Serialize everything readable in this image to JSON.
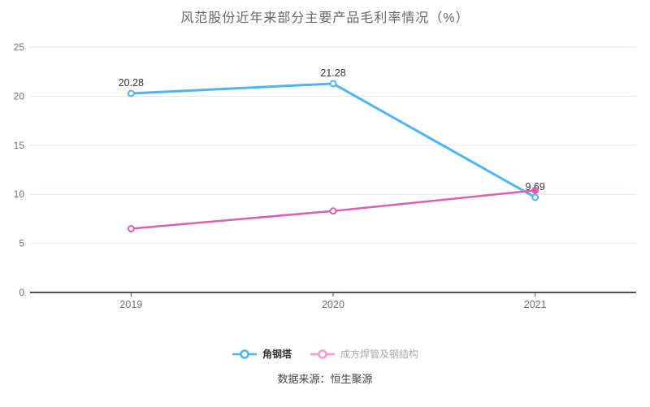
{
  "title": "风范股份近年来部分主要产品毛利率情况（%）",
  "source": "数据来源：恒生聚源",
  "colors": {
    "background": "#ffffff",
    "title_text": "#666666",
    "grid_line": "#e0e6f1",
    "axis_line": "#4d4f57",
    "axis_label": "#6e7079",
    "point_label": "#333333"
  },
  "chart_data": {
    "type": "line",
    "categories": [
      "2019",
      "2020",
      "2021"
    ],
    "series": [
      {
        "name": "角钢塔",
        "color": "#4fb4ef",
        "line_width": 3,
        "values": [
          20.28,
          21.28,
          9.69
        ],
        "point_labels": [
          "20.28",
          "21.28",
          "9.69"
        ],
        "show_labels": true,
        "filled_points": [],
        "legend_color": "#4fb4ef",
        "legend_text_color": "#333333",
        "legend_bold": true
      },
      {
        "name": "成方焊管及钢结构",
        "color": "#dd5fb2",
        "line_width": 2.5,
        "values": [
          6.5,
          8.3,
          10.4
        ],
        "point_labels": [],
        "show_labels": false,
        "filled_points": [
          2
        ],
        "legend_color": "#f49bd0",
        "legend_text_color": "#aaaaaa",
        "legend_bold": false
      }
    ],
    "ylim": [
      0,
      25
    ],
    "yticks": [
      0,
      5,
      10,
      15,
      20,
      25
    ],
    "grid": true,
    "legend_position": "bottom"
  }
}
